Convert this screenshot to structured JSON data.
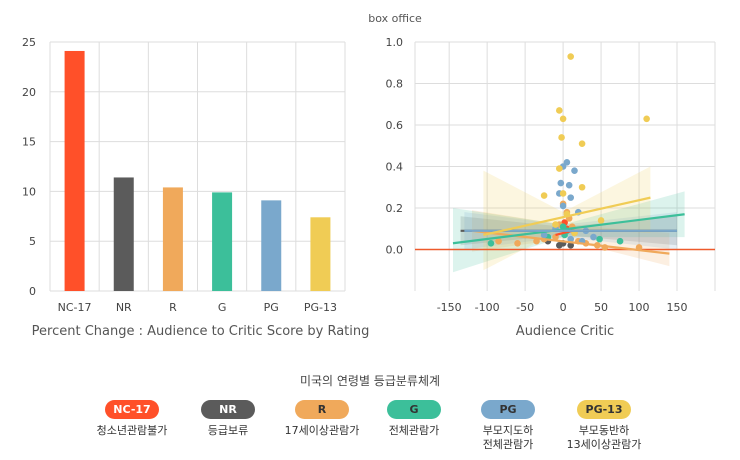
{
  "chart_data": [
    {
      "type": "bar",
      "categories": [
        "NC-17",
        "NR",
        "R",
        "G",
        "PG",
        "PG-13"
      ],
      "values": [
        24.1,
        11.4,
        10.4,
        9.9,
        9.1,
        7.4
      ],
      "colors": [
        "#ff5029",
        "#5b5b5b",
        "#f0a95b",
        "#3cbf9a",
        "#7aa8cc",
        "#f0cc55"
      ],
      "title": "",
      "xlabel": "Percent Change : Audience to Critic Score by Rating",
      "ylabel": "",
      "ylim": [
        0,
        25
      ],
      "yticks": [
        0,
        5,
        10,
        15,
        20,
        25
      ],
      "grid": true
    },
    {
      "type": "scatter",
      "title": "box office",
      "xlabel": "Audience Critic",
      "ylabel": "",
      "xlim": [
        -195,
        200
      ],
      "ylim": [
        -0.2,
        1.0
      ],
      "xticks": [
        -150,
        -100,
        -50,
        0,
        50,
        100,
        150
      ],
      "yticks": [
        0.0,
        0.2,
        0.4,
        0.6,
        0.8,
        1.0
      ],
      "grid": true,
      "reference_line": {
        "y": 0.0,
        "color": "#ee5a2c"
      },
      "series": [
        {
          "rating": "NC-17",
          "color": "#ff5029",
          "points": [
            [
              2,
              0.13
            ],
            [
              5,
              0.1
            ]
          ],
          "fit": {
            "x": [
              -10,
              12
            ],
            "y": [
              0.07,
              0.09
            ]
          }
        },
        {
          "rating": "NR",
          "color": "#5b5b5b",
          "points": [
            [
              -5,
              0.02
            ],
            [
              0,
              0.03
            ],
            [
              10,
              0.02
            ],
            [
              -20,
              0.04
            ]
          ],
          "fit": {
            "x": [
              -135,
              150
            ],
            "y": [
              0.09,
              0.09
            ]
          },
          "band": {
            "x": [
              -135,
              0,
              150
            ],
            "upper": [
              0.16,
              0.11,
              0.16
            ],
            "lower": [
              0.02,
              0.07,
              0.02
            ]
          }
        },
        {
          "rating": "R",
          "color": "#f0a95b",
          "points": [
            [
              -25,
              0.05
            ],
            [
              -10,
              0.06
            ],
            [
              0,
              0.22
            ],
            [
              5,
              0.18
            ],
            [
              8,
              0.15
            ],
            [
              12,
              0.11
            ],
            [
              -5,
              0.12
            ],
            [
              20,
              0.04
            ],
            [
              30,
              0.03
            ],
            [
              45,
              0.02
            ],
            [
              55,
              0.01
            ],
            [
              100,
              0.01
            ],
            [
              -60,
              0.03
            ],
            [
              -85,
              0.04
            ],
            [
              -35,
              0.04
            ],
            [
              15,
              0.08
            ],
            [
              3,
              0.09
            ]
          ],
          "fit": {
            "x": [
              -120,
              140
            ],
            "y": [
              0.09,
              -0.02
            ]
          },
          "band": {
            "x": [
              -120,
              0,
              140
            ],
            "upper": [
              0.19,
              0.12,
              0.08
            ],
            "lower": [
              -0.01,
              0.05,
              -0.08
            ]
          }
        },
        {
          "rating": "G",
          "color": "#3cbf9a",
          "points": [
            [
              -95,
              0.03
            ],
            [
              -20,
              0.06
            ],
            [
              0,
              0.11
            ],
            [
              5,
              0.09
            ],
            [
              48,
              0.05
            ],
            [
              75,
              0.04
            ],
            [
              2,
              0.07
            ]
          ],
          "fit": {
            "x": [
              -145,
              160
            ],
            "y": [
              0.03,
              0.17
            ]
          },
          "band": {
            "x": [
              -145,
              0,
              160
            ],
            "upper": [
              0.2,
              0.12,
              0.28
            ],
            "lower": [
              -0.11,
              0.06,
              0.06
            ]
          }
        },
        {
          "rating": "PG",
          "color": "#7aa8cc",
          "points": [
            [
              0,
              0.4
            ],
            [
              5,
              0.42
            ],
            [
              -3,
              0.32
            ],
            [
              8,
              0.31
            ],
            [
              15,
              0.38
            ],
            [
              -5,
              0.27
            ],
            [
              10,
              0.25
            ],
            [
              0,
              0.21
            ],
            [
              20,
              0.18
            ],
            [
              -10,
              0.1
            ],
            [
              30,
              0.09
            ],
            [
              -25,
              0.07
            ],
            [
              40,
              0.06
            ],
            [
              10,
              0.05
            ],
            [
              25,
              0.04
            ]
          ],
          "fit": {
            "x": [
              -130,
              150
            ],
            "y": [
              0.09,
              0.09
            ]
          },
          "band": {
            "x": [
              -130,
              0,
              150
            ],
            "upper": [
              0.18,
              0.12,
              0.18
            ],
            "lower": [
              0.0,
              0.06,
              0.0
            ]
          }
        },
        {
          "rating": "PG-13",
          "color": "#f0cc55",
          "points": [
            [
              10,
              0.93
            ],
            [
              -5,
              0.67
            ],
            [
              0,
              0.63
            ],
            [
              110,
              0.63
            ],
            [
              -2,
              0.54
            ],
            [
              25,
              0.51
            ],
            [
              -5,
              0.39
            ],
            [
              25,
              0.3
            ],
            [
              -25,
              0.26
            ],
            [
              50,
              0.14
            ],
            [
              0,
              0.27
            ],
            [
              5,
              0.17
            ],
            [
              -10,
              0.12
            ],
            [
              15,
              0.08
            ]
          ],
          "fit": {
            "x": [
              -105,
              115
            ],
            "y": [
              0.07,
              0.25
            ]
          },
          "band": {
            "x": [
              -105,
              0,
              115
            ],
            "upper": [
              0.38,
              0.18,
              0.4
            ],
            "lower": [
              -0.1,
              0.1,
              0.08
            ]
          }
        }
      ]
    }
  ],
  "legend": {
    "title": "미국의 연령별 등급분류체계",
    "items": [
      {
        "label": "NC-17",
        "desc": "청소년관람불가",
        "color": "#ff5029",
        "text_color": "#ffffff"
      },
      {
        "label": "NR",
        "desc": "등급보류",
        "color": "#5b5b5b",
        "text_color": "#ffffff"
      },
      {
        "label": "R",
        "desc": "17세이상관람가",
        "color": "#f0a95b",
        "text_color": "#333333"
      },
      {
        "label": "G",
        "desc": "전체관람가",
        "color": "#3cbf9a",
        "text_color": "#333333"
      },
      {
        "label": "PG",
        "desc": "부모지도하\n전체관람가",
        "color": "#7aa8cc",
        "text_color": "#333333"
      },
      {
        "label": "PG-13",
        "desc": "부모동반하\n13세이상관람가",
        "color": "#f0cc55",
        "text_color": "#333333"
      }
    ]
  }
}
